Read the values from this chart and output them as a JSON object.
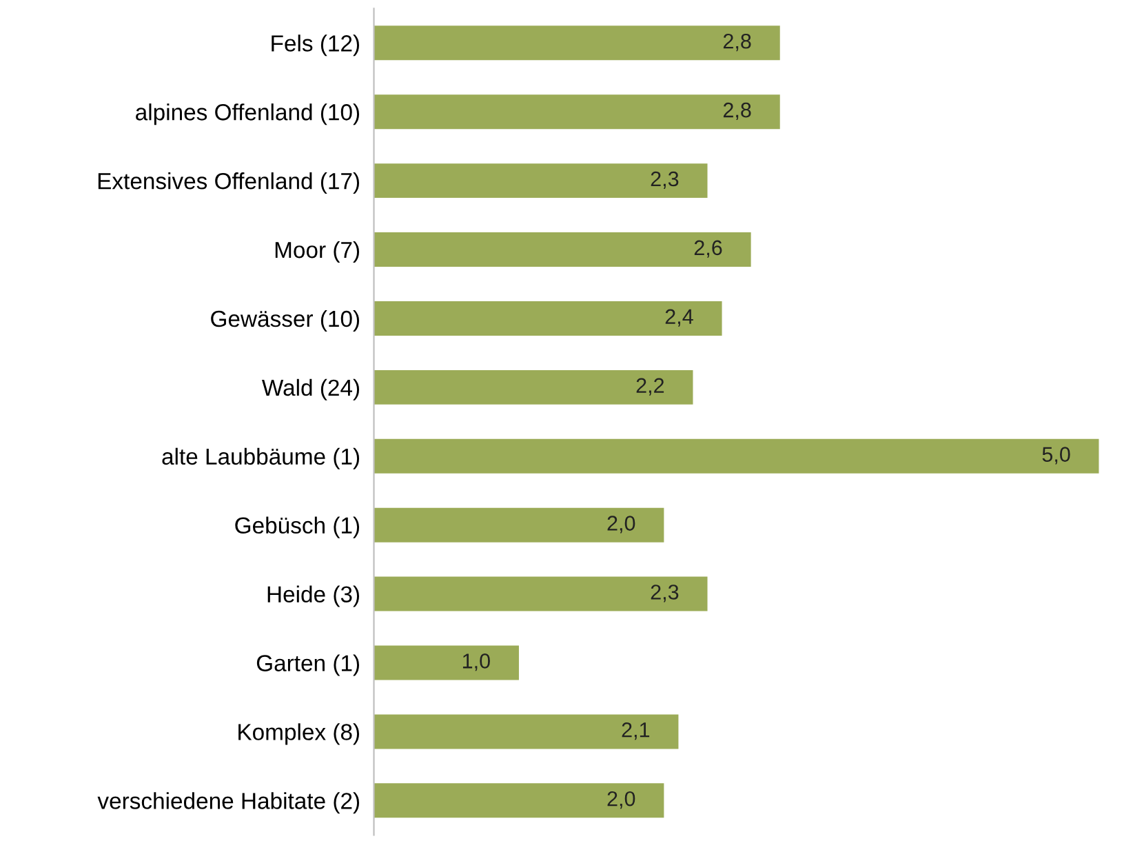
{
  "chart_data": {
    "type": "bar",
    "orientation": "horizontal",
    "categories": [
      "Fels (12)",
      "alpines Offenland (10)",
      "Extensives Offenland (17)",
      "Moor (7)",
      "Gewässer (10)",
      "Wald (24)",
      "alte Laubbäume (1)",
      "Gebüsch (1)",
      "Heide (3)",
      "Garten (1)",
      "Komplex (8)",
      "verschiedene Habitate (2)"
    ],
    "values": [
      2.8,
      2.8,
      2.3,
      2.6,
      2.4,
      2.2,
      5.0,
      2.0,
      2.3,
      1.0,
      2.1,
      2.0
    ],
    "value_labels": [
      "2,8",
      "2,8",
      "2,3",
      "2,6",
      "2,4",
      "2,2",
      "5,0",
      "2,0",
      "2,3",
      "1,0",
      "2,1",
      "2,0"
    ],
    "color": "#9bab57",
    "xlim": [
      0,
      5
    ],
    "tick_labels": "y",
    "grid": false,
    "legend": false
  }
}
